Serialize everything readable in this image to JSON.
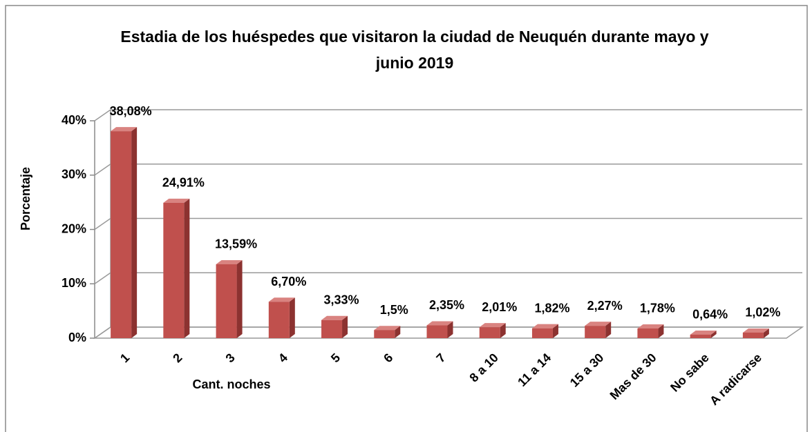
{
  "chart_data": {
    "type": "bar3d",
    "title": "Estadia de los huéspedes que visitaron la ciudad de Neuquén durante mayo y junio  2019",
    "x_label": "Cant. noches",
    "y_label": "Porcentaje",
    "categories": [
      "1",
      "2",
      "3",
      "4",
      "5",
      "6",
      "7",
      "8 a 10",
      "11 a 14",
      "15 a 30",
      "Mas de 30",
      "No sabe",
      "A radicarse"
    ],
    "values": [
      38.08,
      24.91,
      13.59,
      6.7,
      3.33,
      1.5,
      2.35,
      2.01,
      1.82,
      2.27,
      1.78,
      0.64,
      1.02
    ],
    "value_labels": [
      "38,08%",
      "24,91%",
      "13,59%",
      "6,70%",
      "3,33%",
      "1,5%",
      "2,35%",
      "2,01%",
      "1,82%",
      "2,27%",
      "1,78%",
      "0,64%",
      "1,02%"
    ],
    "color": "#c0504d",
    "ylim": [
      0,
      40
    ],
    "yticks": [
      {
        "value": 0,
        "label": "0%"
      },
      {
        "value": 10,
        "label": "10%"
      },
      {
        "value": 20,
        "label": "20%"
      },
      {
        "value": 30,
        "label": "30%"
      },
      {
        "value": 40,
        "label": "40%"
      }
    ],
    "grid": true
  }
}
